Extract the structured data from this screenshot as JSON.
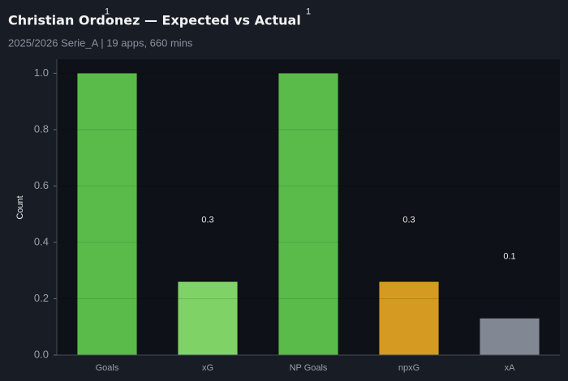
{
  "chart_data": {
    "type": "bar",
    "title": "Christian Ordonez — Expected vs Actual",
    "subtitle": "2025/2026 Serie_A | 19 apps, 660 mins",
    "y_label": "Count",
    "categories": [
      "Goals",
      "xG",
      "NP Goals",
      "npxG",
      "xA"
    ],
    "values": [
      1.0,
      0.26,
      1.0,
      0.26,
      0.13
    ],
    "value_labels": [
      "1",
      "0.3",
      "1",
      "0.3",
      "0.1"
    ],
    "colors": [
      "#5bbb4a",
      "#7fd266",
      "#5bbb4a",
      "#d49a22",
      "#818793"
    ],
    "ylim": [
      0,
      1.05
    ],
    "yticks": [
      {
        "value": 0,
        "label": "0.0"
      },
      0.2,
      0.4,
      0.6,
      0.8,
      {
        "value": 1,
        "label": "1.0"
      }
    ],
    "grid": true
  }
}
